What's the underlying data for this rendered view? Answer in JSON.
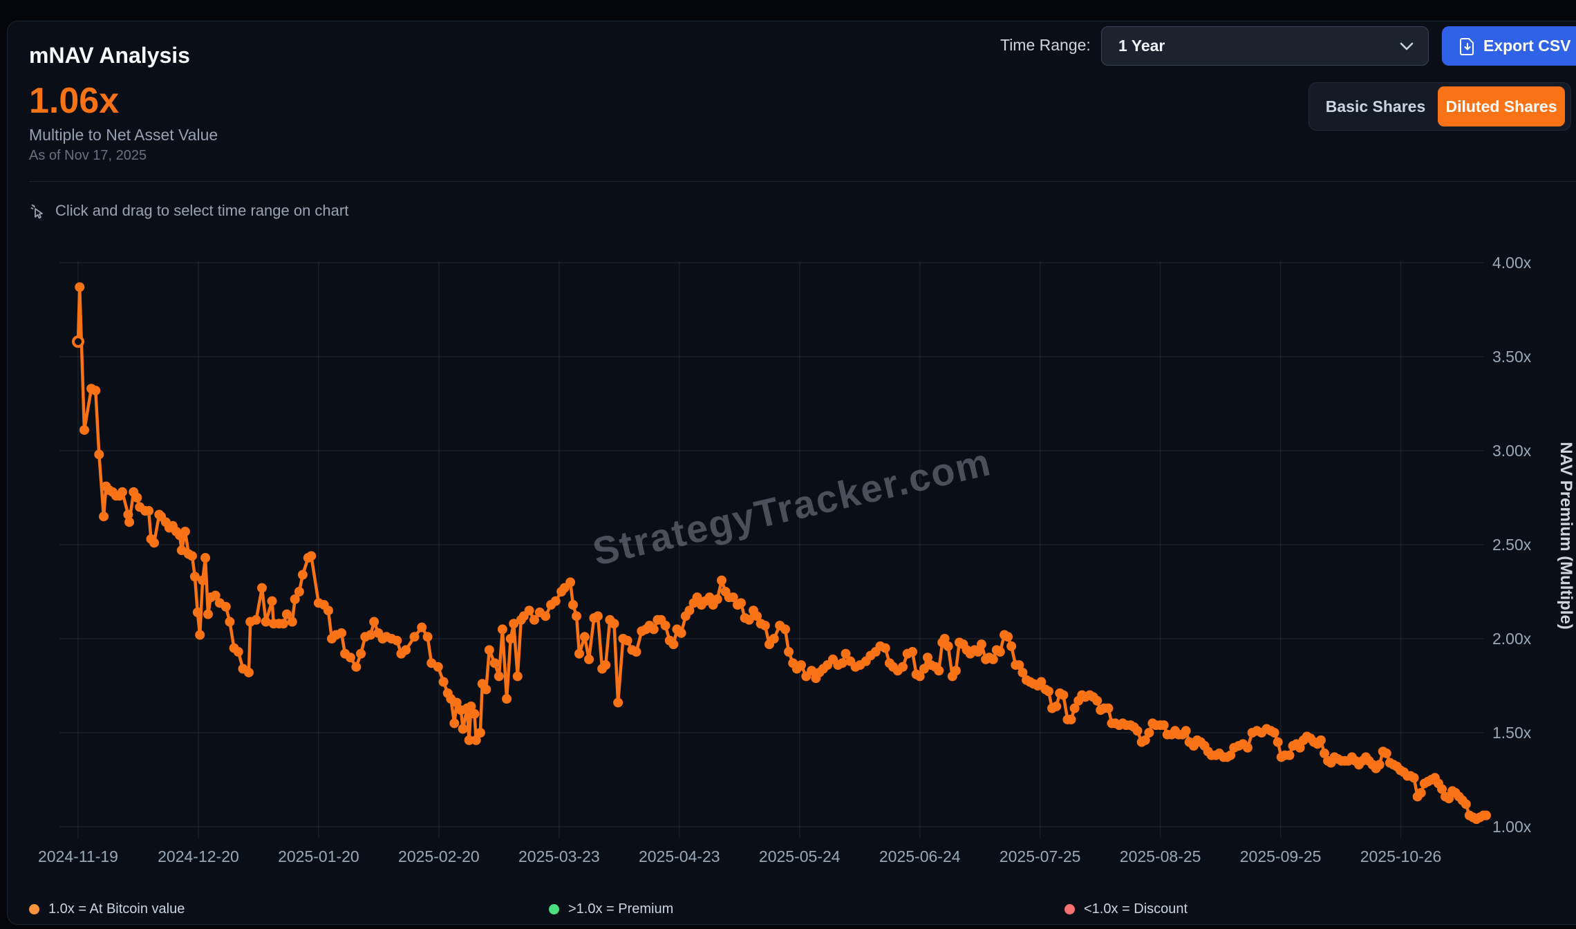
{
  "header": {
    "title": "mNAV Analysis"
  },
  "controls": {
    "time_range_label": "Time Range:",
    "time_range_value": "1 Year",
    "export_label": "Export CSV"
  },
  "metric": {
    "value": "1.06x",
    "subtitle": "Multiple to Net Asset Value",
    "as_of": "As of Nov 17, 2025"
  },
  "share_toggle": {
    "basic_label": "Basic Shares",
    "diluted_label": "Diluted Shares",
    "active": "Diluted Shares"
  },
  "instruction": {
    "text": "Click and drag to select time range on chart"
  },
  "watermark": "StrategyTracker.com",
  "colors": {
    "accent_orange": "#f97316",
    "export_blue": "#2f62e6",
    "premium_green": "#4ade80",
    "discount_red": "#f87171",
    "card_bg": "#0a0e16",
    "grid": "rgba(255,255,255,0.07)",
    "tick_text": "#9aa9b8"
  },
  "chart_data": {
    "type": "line",
    "title": "",
    "xlabel": "",
    "ylabel": "NAV Premium (Multiple)",
    "start_date": "2024-11-19",
    "end_date": "2025-11-17",
    "ylim": [
      1.0,
      4.0
    ],
    "grid": true,
    "y_ticks": [
      1.0,
      1.5,
      2.0,
      2.5,
      3.0,
      3.5,
      4.0
    ],
    "y_tick_suffix": "x",
    "x_ticks": [
      {
        "day": 0,
        "label": "2024-11-19"
      },
      {
        "day": 31,
        "label": "2024-12-20"
      },
      {
        "day": 62,
        "label": "2025-01-20"
      },
      {
        "day": 93,
        "label": "2025-02-20"
      },
      {
        "day": 124,
        "label": "2025-03-23"
      },
      {
        "day": 155,
        "label": "2025-04-23"
      },
      {
        "day": 186,
        "label": "2025-05-24"
      },
      {
        "day": 217,
        "label": "2025-06-24"
      },
      {
        "day": 248,
        "label": "2025-07-25"
      },
      {
        "day": 279,
        "label": "2025-08-25"
      },
      {
        "day": 310,
        "label": "2025-09-25"
      },
      {
        "day": 341,
        "label": "2025-10-26"
      }
    ],
    "series_color": "#f97316",
    "x_axis_days": [
      0,
      363
    ],
    "points": [
      [
        0,
        3.58
      ],
      [
        0.4,
        3.87
      ],
      [
        1.6,
        3.11
      ],
      [
        3.4,
        3.33
      ],
      [
        4.5,
        3.32
      ],
      [
        5.4,
        2.98
      ],
      [
        6.6,
        2.65
      ],
      [
        7.2,
        2.81
      ],
      [
        8.0,
        2.79
      ],
      [
        8.9,
        2.78
      ],
      [
        9.8,
        2.76
      ],
      [
        10.7,
        2.76
      ],
      [
        11.4,
        2.78
      ],
      [
        12.9,
        2.66
      ],
      [
        13.2,
        2.62
      ],
      [
        14.3,
        2.78
      ],
      [
        15.2,
        2.75
      ],
      [
        15.9,
        2.7
      ],
      [
        17.3,
        2.68
      ],
      [
        18.2,
        2.68
      ],
      [
        18.8,
        2.53
      ],
      [
        19.6,
        2.51
      ],
      [
        20.9,
        2.66
      ],
      [
        21.4,
        2.65
      ],
      [
        22.6,
        2.62
      ],
      [
        23.5,
        2.59
      ],
      [
        24.4,
        2.6
      ],
      [
        25.3,
        2.57
      ],
      [
        26.2,
        2.55
      ],
      [
        26.7,
        2.47
      ],
      [
        27.6,
        2.57
      ],
      [
        28.5,
        2.45
      ],
      [
        29.4,
        2.44
      ],
      [
        30.1,
        2.33
      ],
      [
        30.8,
        2.14
      ],
      [
        31.4,
        2.02
      ],
      [
        32.1,
        2.31
      ],
      [
        32.8,
        2.43
      ],
      [
        33.5,
        2.13
      ],
      [
        34.2,
        2.22
      ],
      [
        35.4,
        2.23
      ],
      [
        36.5,
        2.19
      ],
      [
        38.1,
        2.17
      ],
      [
        39.1,
        2.09
      ],
      [
        40.2,
        1.95
      ],
      [
        41.3,
        1.93
      ],
      [
        42.5,
        1.84
      ],
      [
        44,
        1.82
      ],
      [
        44.4,
        2.09
      ],
      [
        45.9,
        2.1
      ],
      [
        47.4,
        2.27
      ],
      [
        48.4,
        2.09
      ],
      [
        50,
        2.2
      ],
      [
        50.4,
        2.08
      ],
      [
        51.8,
        2.08
      ],
      [
        52.9,
        2.08
      ],
      [
        53.8,
        2.13
      ],
      [
        55.2,
        2.09
      ],
      [
        55.9,
        2.21
      ],
      [
        57,
        2.25
      ],
      [
        57.9,
        2.34
      ],
      [
        59.3,
        2.43
      ],
      [
        60.1,
        2.44
      ],
      [
        62,
        2.19
      ],
      [
        63.4,
        2.18
      ],
      [
        64.5,
        2.15
      ],
      [
        65.4,
        2.0
      ],
      [
        66.5,
        2.02
      ],
      [
        67.9,
        2.03
      ],
      [
        68.8,
        1.92
      ],
      [
        70.2,
        1.9
      ],
      [
        71.7,
        1.85
      ],
      [
        72.9,
        1.92
      ],
      [
        74,
        2.01
      ],
      [
        75.4,
        2.02
      ],
      [
        76.3,
        2.09
      ],
      [
        77.4,
        2.03
      ],
      [
        78.5,
        2.0
      ],
      [
        79.5,
        2.01
      ],
      [
        80.8,
        2.0
      ],
      [
        82.2,
        1.99
      ],
      [
        83.3,
        1.92
      ],
      [
        84.5,
        1.94
      ],
      [
        86.7,
        2.01
      ],
      [
        88.6,
        2.06
      ],
      [
        90.1,
        2.01
      ],
      [
        91.1,
        1.87
      ],
      [
        92.8,
        1.85
      ],
      [
        94.2,
        1.77
      ],
      [
        95.3,
        1.71
      ],
      [
        96.1,
        1.68
      ],
      [
        97,
        1.55
      ],
      [
        97.6,
        1.66
      ],
      [
        98.7,
        1.62
      ],
      [
        99.2,
        1.52
      ],
      [
        100.3,
        1.63
      ],
      [
        100.8,
        1.46
      ],
      [
        101.3,
        1.64
      ],
      [
        102.2,
        1.6
      ],
      [
        102.6,
        1.46
      ],
      [
        103.7,
        1.5
      ],
      [
        104.2,
        1.76
      ],
      [
        105.2,
        1.73
      ],
      [
        106,
        1.94
      ],
      [
        107.4,
        1.87
      ],
      [
        108.5,
        1.8
      ],
      [
        109.4,
        2.05
      ],
      [
        110.5,
        1.68
      ],
      [
        111.5,
        2.0
      ],
      [
        112.3,
        2.08
      ],
      [
        113.3,
        1.8
      ],
      [
        114.2,
        2.1
      ],
      [
        114.9,
        2.12
      ],
      [
        116.3,
        2.15
      ],
      [
        117.6,
        2.1
      ],
      [
        119,
        2.14
      ],
      [
        120.5,
        2.12
      ],
      [
        121.9,
        2.18
      ],
      [
        123.1,
        2.2
      ],
      [
        124.6,
        2.25
      ],
      [
        125.4,
        2.27
      ],
      [
        126.9,
        2.3
      ],
      [
        127.6,
        2.18
      ],
      [
        128.5,
        2.12
      ],
      [
        129.2,
        1.92
      ],
      [
        130.6,
        2.01
      ],
      [
        131.7,
        1.89
      ],
      [
        133,
        2.11
      ],
      [
        134,
        2.12
      ],
      [
        135.1,
        1.84
      ],
      [
        136,
        1.86
      ],
      [
        137.1,
        2.1
      ],
      [
        138.2,
        2.08
      ],
      [
        139.2,
        1.66
      ],
      [
        140.5,
        2.0
      ],
      [
        141.6,
        1.99
      ],
      [
        142.8,
        1.94
      ],
      [
        143.9,
        1.93
      ],
      [
        145.3,
        2.04
      ],
      [
        146.4,
        2.05
      ],
      [
        147.3,
        2.07
      ],
      [
        148.4,
        2.05
      ],
      [
        149.4,
        2.1
      ],
      [
        150.3,
        2.1
      ],
      [
        151.4,
        2.07
      ],
      [
        152.5,
        1.99
      ],
      [
        153.5,
        1.97
      ],
      [
        154.4,
        2.05
      ],
      [
        155.5,
        2.03
      ],
      [
        156.6,
        2.12
      ],
      [
        157.6,
        2.15
      ],
      [
        158.7,
        2.19
      ],
      [
        159.6,
        2.22
      ],
      [
        160.7,
        2.18
      ],
      [
        161.7,
        2.2
      ],
      [
        162.8,
        2.22
      ],
      [
        163.7,
        2.18
      ],
      [
        164.8,
        2.21
      ],
      [
        165.9,
        2.31
      ],
      [
        166.9,
        2.25
      ],
      [
        167.8,
        2.22
      ],
      [
        168.9,
        2.22
      ],
      [
        170,
        2.18
      ],
      [
        170.9,
        2.19
      ],
      [
        171.9,
        2.11
      ],
      [
        173,
        2.1
      ],
      [
        174.1,
        2.15
      ],
      [
        175,
        2.12
      ],
      [
        176,
        2.08
      ],
      [
        177.1,
        2.07
      ],
      [
        178.2,
        1.97
      ],
      [
        179.4,
        2.0
      ],
      [
        180.9,
        2.07
      ],
      [
        182.3,
        2.05
      ],
      [
        183.2,
        1.93
      ],
      [
        184.3,
        1.87
      ],
      [
        185.3,
        1.84
      ],
      [
        186.4,
        1.86
      ],
      [
        187.7,
        1.8
      ],
      [
        189.1,
        1.83
      ],
      [
        190.2,
        1.79
      ],
      [
        191.1,
        1.82
      ],
      [
        192.1,
        1.84
      ],
      [
        193.2,
        1.86
      ],
      [
        194.6,
        1.89
      ],
      [
        195.9,
        1.86
      ],
      [
        197,
        1.87
      ],
      [
        197.9,
        1.92
      ],
      [
        199.1,
        1.88
      ],
      [
        200.4,
        1.85
      ],
      [
        201.6,
        1.86
      ],
      [
        203.1,
        1.88
      ],
      [
        204.3,
        1.91
      ],
      [
        205.6,
        1.93
      ],
      [
        206.8,
        1.96
      ],
      [
        208.1,
        1.95
      ],
      [
        209.2,
        1.87
      ],
      [
        210.1,
        1.85
      ],
      [
        211.3,
        1.83
      ],
      [
        212.6,
        1.85
      ],
      [
        213.8,
        1.92
      ],
      [
        215.1,
        1.93
      ],
      [
        216.1,
        1.81
      ],
      [
        217,
        1.8
      ],
      [
        218.1,
        1.84
      ],
      [
        219,
        1.9
      ],
      [
        219.9,
        1.86
      ],
      [
        221,
        1.85
      ],
      [
        221.9,
        1.83
      ],
      [
        222.8,
        1.98
      ],
      [
        223.4,
        2.0
      ],
      [
        224.3,
        1.96
      ],
      [
        225.4,
        1.8
      ],
      [
        226.3,
        1.83
      ],
      [
        227.2,
        1.98
      ],
      [
        228.2,
        1.97
      ],
      [
        229.1,
        1.94
      ],
      [
        230,
        1.92
      ],
      [
        231.1,
        1.94
      ],
      [
        232,
        1.93
      ],
      [
        232.9,
        1.97
      ],
      [
        234,
        1.89
      ],
      [
        234.9,
        1.9
      ],
      [
        235.9,
        1.89
      ],
      [
        236.8,
        1.94
      ],
      [
        237.7,
        1.93
      ],
      [
        238.8,
        2.02
      ],
      [
        239.7,
        2.01
      ],
      [
        240.6,
        1.96
      ],
      [
        241.7,
        1.86
      ],
      [
        242.6,
        1.86
      ],
      [
        243.5,
        1.82
      ],
      [
        244.5,
        1.78
      ],
      [
        245.4,
        1.77
      ],
      [
        246.3,
        1.76
      ],
      [
        247.4,
        1.75
      ],
      [
        248.3,
        1.77
      ],
      [
        249.4,
        1.73
      ],
      [
        250.2,
        1.72
      ],
      [
        251.1,
        1.63
      ],
      [
        252.2,
        1.64
      ],
      [
        253.1,
        1.71
      ],
      [
        254,
        1.7
      ],
      [
        255.1,
        1.57
      ],
      [
        256,
        1.57
      ],
      [
        256.9,
        1.63
      ],
      [
        257.9,
        1.67
      ],
      [
        258.8,
        1.7
      ],
      [
        259.7,
        1.69
      ],
      [
        260.8,
        1.7
      ],
      [
        261.7,
        1.69
      ],
      [
        262.7,
        1.67
      ],
      [
        263.6,
        1.62
      ],
      [
        264.5,
        1.63
      ],
      [
        265.6,
        1.63
      ],
      [
        266.5,
        1.55
      ],
      [
        267.4,
        1.55
      ],
      [
        268.4,
        1.54
      ],
      [
        269.3,
        1.55
      ],
      [
        270.2,
        1.54
      ],
      [
        271.3,
        1.54
      ],
      [
        272.2,
        1.53
      ],
      [
        273.1,
        1.51
      ],
      [
        274.2,
        1.45
      ],
      [
        275.1,
        1.46
      ],
      [
        276.1,
        1.5
      ],
      [
        277,
        1.55
      ],
      [
        277.9,
        1.54
      ],
      [
        279,
        1.54
      ],
      [
        279.9,
        1.54
      ],
      [
        280.8,
        1.49
      ],
      [
        281.9,
        1.49
      ],
      [
        282.8,
        1.51
      ],
      [
        283.7,
        1.49
      ],
      [
        284.7,
        1.49
      ],
      [
        285.6,
        1.51
      ],
      [
        286.5,
        1.45
      ],
      [
        287.6,
        1.43
      ],
      [
        288.5,
        1.46
      ],
      [
        289.4,
        1.45
      ],
      [
        290.4,
        1.43
      ],
      [
        291.3,
        1.4
      ],
      [
        292.2,
        1.38
      ],
      [
        293.3,
        1.38
      ],
      [
        294.2,
        1.39
      ],
      [
        295.3,
        1.37
      ],
      [
        296.2,
        1.37
      ],
      [
        297.1,
        1.38
      ],
      [
        298,
        1.42
      ],
      [
        299.2,
        1.43
      ],
      [
        300.3,
        1.44
      ],
      [
        301.5,
        1.42
      ],
      [
        302.7,
        1.5
      ],
      [
        303.9,
        1.51
      ],
      [
        305.1,
        1.5
      ],
      [
        306.4,
        1.52
      ],
      [
        307.5,
        1.51
      ],
      [
        308.4,
        1.5
      ],
      [
        309.3,
        1.45
      ],
      [
        310.2,
        1.37
      ],
      [
        311.1,
        1.38
      ],
      [
        312.3,
        1.38
      ],
      [
        313.2,
        1.43
      ],
      [
        314.1,
        1.44
      ],
      [
        315,
        1.42
      ],
      [
        315.9,
        1.46
      ],
      [
        316.8,
        1.48
      ],
      [
        317.7,
        1.47
      ],
      [
        318.6,
        1.45
      ],
      [
        319.5,
        1.44
      ],
      [
        320.4,
        1.46
      ],
      [
        321.3,
        1.39
      ],
      [
        322.2,
        1.35
      ],
      [
        323,
        1.34
      ],
      [
        323.9,
        1.37
      ],
      [
        324.8,
        1.36
      ],
      [
        325.7,
        1.35
      ],
      [
        326.6,
        1.35
      ],
      [
        327.5,
        1.35
      ],
      [
        328.4,
        1.37
      ],
      [
        329.3,
        1.35
      ],
      [
        330.2,
        1.33
      ],
      [
        331.1,
        1.35
      ],
      [
        332,
        1.37
      ],
      [
        332.8,
        1.35
      ],
      [
        333.7,
        1.33
      ],
      [
        334.6,
        1.31
      ],
      [
        335.5,
        1.33
      ],
      [
        336.4,
        1.4
      ],
      [
        337.3,
        1.39
      ],
      [
        338.2,
        1.34
      ],
      [
        339.1,
        1.33
      ],
      [
        340,
        1.32
      ],
      [
        340.9,
        1.3
      ],
      [
        341.8,
        1.29
      ],
      [
        342.7,
        1.27
      ],
      [
        343.5,
        1.27
      ],
      [
        344.4,
        1.26
      ],
      [
        345.3,
        1.16
      ],
      [
        346.2,
        1.18
      ],
      [
        347.1,
        1.23
      ],
      [
        348,
        1.24
      ],
      [
        348.9,
        1.25
      ],
      [
        349.8,
        1.26
      ],
      [
        350.7,
        1.23
      ],
      [
        351.6,
        1.2
      ],
      [
        352.5,
        1.16
      ],
      [
        353.4,
        1.15
      ],
      [
        354.3,
        1.19
      ],
      [
        355.1,
        1.18
      ],
      [
        356,
        1.16
      ],
      [
        356.9,
        1.14
      ],
      [
        357.8,
        1.12
      ],
      [
        358.7,
        1.06
      ],
      [
        359.6,
        1.05
      ],
      [
        360.5,
        1.04
      ],
      [
        361.4,
        1.05
      ],
      [
        362.3,
        1.06
      ],
      [
        363,
        1.06
      ]
    ],
    "legend": [
      {
        "label": "1.0x = At Bitcoin value",
        "color": "#fb923c"
      },
      {
        "label": ">1.0x = Premium",
        "color": "#4ade80"
      },
      {
        "label": "<1.0x = Discount",
        "color": "#f87171"
      }
    ],
    "legend_position": "bottom"
  }
}
